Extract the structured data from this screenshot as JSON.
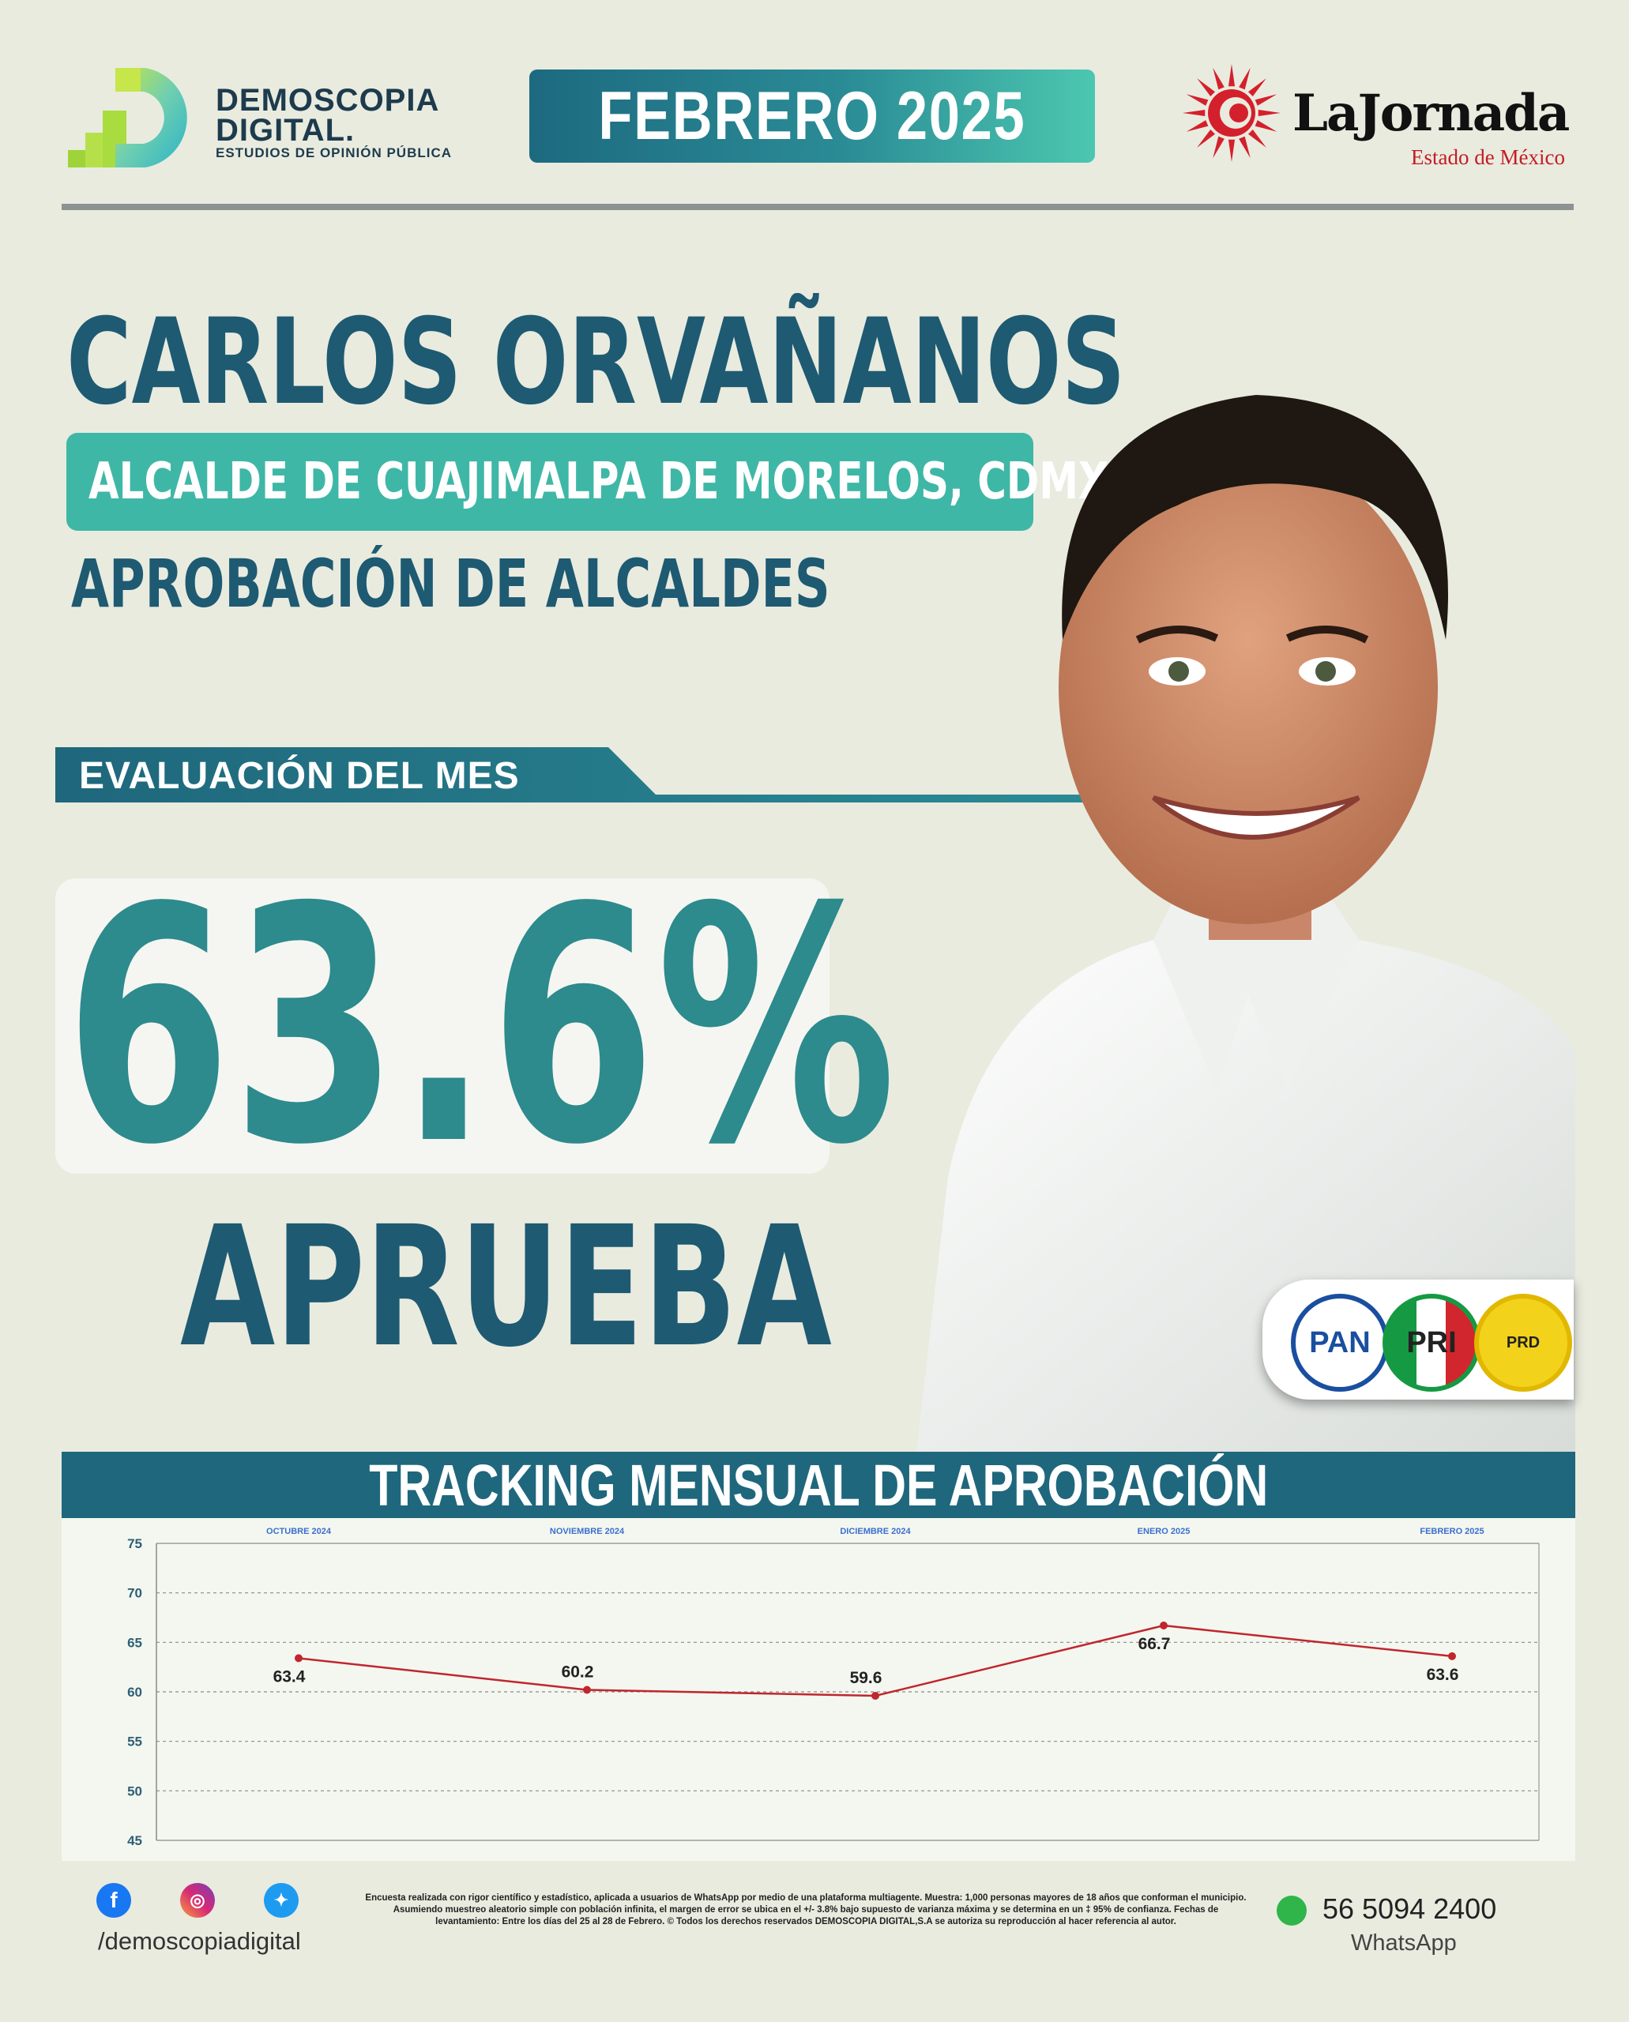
{
  "header": {
    "brand_name_line1": "DEMOSCOPIA",
    "brand_name_line2": "DIGITAL.",
    "brand_tagline": "ESTUDIOS DE OPINIÓN PÚBLICA",
    "month": "FEBRERO 2025",
    "partner_name": "LaJornada",
    "partner_sub": "Estado de México"
  },
  "main": {
    "name": "CARLOS ORVAÑANOS",
    "role": "ALCALDE DE CUAJIMALPA DE MORELOS, CDMX.",
    "survey": "APROBACIÓN DE ALCALDES",
    "eval_label": "EVALUACIÓN DEL MES",
    "value": "63.6%",
    "value_label": "APRUEBA"
  },
  "parties": [
    "PAN",
    "PRI",
    "PRD"
  ],
  "chart_data": {
    "type": "line",
    "title": "TRACKING MENSUAL DE APROBACIÓN",
    "categories": [
      "OCTUBRE 2024",
      "NOVIEMBRE 2024",
      "DICIEMBRE 2024",
      "ENERO 2025",
      "FEBRERO 2025"
    ],
    "values": [
      63.4,
      60.2,
      59.6,
      66.7,
      63.6
    ],
    "ylim": [
      45,
      75
    ],
    "yticks": [
      45,
      50,
      55,
      60,
      65,
      70,
      75
    ],
    "grid": true,
    "color": "#c0262d"
  },
  "footer": {
    "handle": "/demoscopiadigital",
    "disclaimer": "Encuesta realizada con rigor científico y estadístico, aplicada a usuarios de WhatsApp por medio de una plataforma multiagente. Muestra: 1,000 personas mayores de 18 años que conforman el municipio. Asumiendo muestreo aleatorio simple con población infinita, el margen de error se ubica en el +/- 3.8% bajo supuesto de varianza máxima y se determina en un ‡ 95% de confianza. Fechas de levantamiento: Entre los días del 25 al 28 de Febrero. © Todos los derechos reservados DEMOSCOPIA DIGITAL,S.A se autoriza su reproducción al hacer referencia al autor.",
    "phone": "56 5094 2400",
    "whatsapp_label": "WhatsApp"
  },
  "colors": {
    "teal": "#2d8a8d",
    "navy": "#1e5a72",
    "band": "#1f677c",
    "mint": "#3fb7a6",
    "line": "#c0262d"
  }
}
